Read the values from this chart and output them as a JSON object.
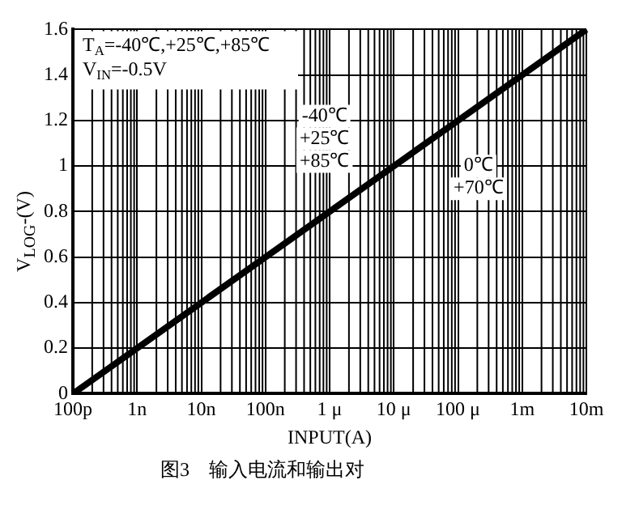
{
  "chart_data": {
    "type": "line",
    "xlabel": "INPUT(A)",
    "ylabel": "V$_{LOG}$-(V)",
    "categories": [
      "100p",
      "1n",
      "10n",
      "100n",
      "1 μ",
      "10 μ",
      "100 μ",
      "1m",
      "10m"
    ],
    "series": [
      {
        "color": "#000000",
        "values": [
          0,
          0.2,
          0.4,
          0.6,
          0.8,
          1.0,
          1.2,
          1.4,
          1.6
        ]
      }
    ],
    "ylim": [
      0,
      1.6
    ],
    "yticks": [
      0,
      0.2,
      0.4,
      0.6,
      0.8,
      1.0,
      1.2,
      1.4,
      1.6
    ],
    "grid": true,
    "legend": false,
    "marker": "none",
    "line_style": "solid",
    "annotations": [
      "T$_{A}$=-40℃,+25℃,+85℃",
      "V$_{IN}$=-0.5V",
      "-40℃",
      "+25℃",
      "+85℃",
      "0℃",
      "+70℃",
      "图3　输入电流和输出对"
    ]
  }
}
